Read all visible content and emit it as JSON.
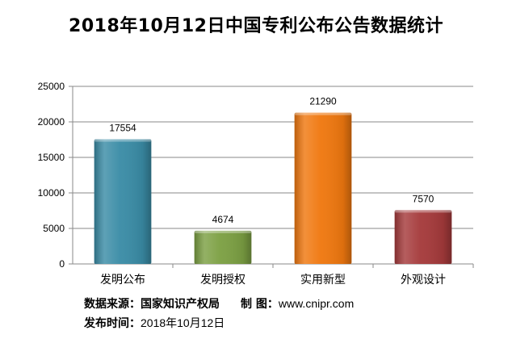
{
  "title": "2018年10月12日中国专利公布公告数据统计",
  "chart_data": {
    "type": "bar",
    "title": "2018年10月12日中国专利公布公告数据统计",
    "categories": [
      "发明公布",
      "发明授权",
      "实用新型",
      "外观设计"
    ],
    "values": [
      17554,
      4674,
      21290,
      7570
    ],
    "data_labels": [
      "17554",
      "4674",
      "21290",
      "7570"
    ],
    "bar_colors": [
      "#3A8CA6",
      "#7CA043",
      "#F0780F",
      "#A53A3B"
    ],
    "ylim": [
      0,
      25000
    ],
    "yticks": [
      0,
      5000,
      10000,
      15000,
      20000,
      25000
    ],
    "ytick_labels": [
      "0",
      "5000",
      "10000",
      "15000",
      "20000",
      "25000"
    ],
    "grid": true,
    "legend": "none",
    "xlabel": "",
    "ylabel": ""
  },
  "footer": {
    "source_label": "数据来源：",
    "source_value": "国家知识产权局",
    "credit_label": "制  图：",
    "credit_value": "www.cnipr.com",
    "date_label": "发布时间：",
    "date_value": "2018年10月12日"
  }
}
